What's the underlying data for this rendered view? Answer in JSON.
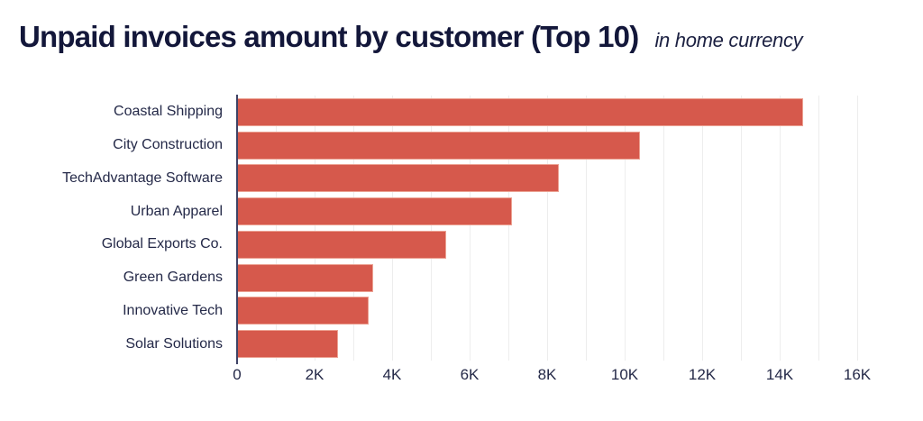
{
  "header": {
    "title": "Unpaid invoices amount by customer (Top 10)",
    "subtitle": "in home currency"
  },
  "colors": {
    "bar_fill": "#d6594c",
    "bar_border": "#eca293",
    "axis_line": "#3e4366",
    "gridline": "#ededed",
    "title_text": "#13173a",
    "label_text": "#242948"
  },
  "chart_data": {
    "type": "bar",
    "orientation": "horizontal",
    "title": "Unpaid invoices amount by customer (Top 10)",
    "subtitle": "in home currency",
    "categories": [
      "Coastal Shipping",
      "City Construction",
      "TechAdvantage Software",
      "Urban Apparel",
      "Global Exports Co.",
      "Green Gardens",
      "Innovative Tech",
      "Solar Solutions"
    ],
    "values": [
      14600,
      10400,
      8300,
      7100,
      5400,
      3500,
      3400,
      2600
    ],
    "xlim": [
      0,
      16000
    ],
    "x_tick_interval": 2000,
    "x_tick_labels": [
      "0",
      "2K",
      "4K",
      "6K",
      "8K",
      "10K",
      "12K",
      "14K",
      "16K"
    ],
    "gridline_interval": 1000,
    "grid": true,
    "legend": false,
    "xlabel": "",
    "ylabel": ""
  }
}
